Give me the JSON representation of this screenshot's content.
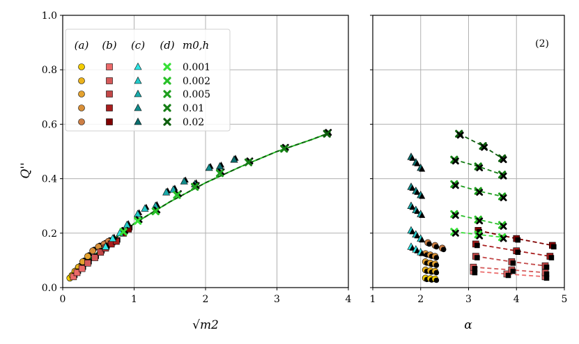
{
  "colors": {
    "a": [
      "#f3cc00",
      "#ebb21c",
      "#e4a22f",
      "#d88f38",
      "#cd7f45"
    ],
    "b": [
      "#eb6a6a",
      "#d45959",
      "#c24747",
      "#a81e1e",
      "#800000"
    ],
    "c": [
      "#2ee6e6",
      "#23c9c9",
      "#1aabab",
      "#128c8c",
      "#0b6e6e"
    ],
    "d": [
      "#36e036",
      "#28bf28",
      "#1e9e1e",
      "#157d15",
      "#0d5e0d"
    ],
    "black": "#000000",
    "grid": "#b0b0b0"
  },
  "legend": {
    "headers": [
      "(a)",
      "(b)",
      "(c)",
      "(d)",
      "m0,h"
    ],
    "m0_values": [
      "0.001",
      "0.002",
      "0.005",
      "0.01",
      "0.02"
    ]
  },
  "chart_data": [
    {
      "type": "scatter",
      "panel": "left",
      "xlabel": "√m2",
      "ylabel": "Q''",
      "xlim": [
        0,
        4
      ],
      "ylim": [
        0,
        1.0
      ],
      "xticks": [
        "0",
        "1",
        "2",
        "3",
        "4"
      ],
      "yticks": [
        "0.0",
        "0.2",
        "0.4",
        "0.6",
        "0.8",
        "1.0"
      ],
      "grid": true,
      "series": [
        {
          "name": "(a)",
          "marker": "circle",
          "points": [
            [
              0.1,
              0.035
            ],
            [
              0.13,
              0.045
            ],
            [
              0.17,
              0.06
            ],
            [
              0.22,
              0.075
            ],
            [
              0.28,
              0.095
            ],
            [
              0.35,
              0.115
            ],
            [
              0.42,
              0.135
            ],
            [
              0.5,
              0.15
            ],
            [
              0.58,
              0.16
            ],
            [
              0.64,
              0.17
            ]
          ]
        },
        {
          "name": "(b)",
          "marker": "square",
          "points": [
            [
              0.15,
              0.04
            ],
            [
              0.2,
              0.055
            ],
            [
              0.27,
              0.07
            ],
            [
              0.35,
              0.09
            ],
            [
              0.45,
              0.11
            ],
            [
              0.53,
              0.13
            ],
            [
              0.6,
              0.145
            ],
            [
              0.68,
              0.16
            ],
            [
              0.75,
              0.17
            ],
            [
              0.85,
              0.2
            ],
            [
              0.92,
              0.215
            ]
          ]
        },
        {
          "name": "(c)",
          "marker": "triangle",
          "points": [
            [
              0.6,
              0.15
            ],
            [
              0.7,
              0.18
            ],
            [
              0.8,
              0.2
            ],
            [
              0.9,
              0.23
            ],
            [
              1.05,
              0.27
            ],
            [
              1.15,
              0.29
            ],
            [
              1.3,
              0.3
            ],
            [
              1.45,
              0.35
            ],
            [
              1.55,
              0.36
            ],
            [
              1.7,
              0.39
            ],
            [
              1.85,
              0.38
            ],
            [
              2.05,
              0.44
            ],
            [
              2.2,
              0.445
            ],
            [
              2.4,
              0.47
            ]
          ]
        },
        {
          "name": "(d)",
          "marker": "x",
          "points": [
            [
              0.85,
              0.205
            ],
            [
              1.05,
              0.245
            ],
            [
              1.3,
              0.28
            ],
            [
              1.6,
              0.34
            ],
            [
              1.85,
              0.37
            ],
            [
              2.2,
              0.42
            ],
            [
              2.6,
              0.46
            ],
            [
              3.1,
              0.51
            ],
            [
              3.7,
              0.565
            ]
          ]
        }
      ],
      "fit_line": [
        [
          0.1,
          0.03
        ],
        [
          0.3,
          0.085
        ],
        [
          0.6,
          0.155
        ],
        [
          1.0,
          0.235
        ],
        [
          1.5,
          0.315
        ],
        [
          2.0,
          0.385
        ],
        [
          2.5,
          0.445
        ],
        [
          3.0,
          0.5
        ],
        [
          3.5,
          0.545
        ],
        [
          3.75,
          0.57
        ]
      ]
    },
    {
      "type": "scatter",
      "panel": "right",
      "xlabel": "α",
      "annotation": "(2)",
      "xlim": [
        1,
        5
      ],
      "ylim": [
        0,
        1.0
      ],
      "xticks": [
        "1",
        "2",
        "3",
        "4",
        "5"
      ],
      "grid": true,
      "groups": [
        {
          "family": "a",
          "marker": "circle",
          "level": 0,
          "points": [
            [
              2.1,
              0.035
            ],
            [
              2.2,
              0.033
            ],
            [
              2.3,
              0.032
            ]
          ]
        },
        {
          "family": "a",
          "marker": "circle",
          "level": 1,
          "points": [
            [
              2.1,
              0.065
            ],
            [
              2.2,
              0.062
            ],
            [
              2.3,
              0.06
            ]
          ]
        },
        {
          "family": "a",
          "marker": "circle",
          "level": 2,
          "points": [
            [
              2.1,
              0.095
            ],
            [
              2.2,
              0.09
            ],
            [
              2.3,
              0.087
            ]
          ]
        },
        {
          "family": "a",
          "marker": "circle",
          "level": 3,
          "points": [
            [
              2.1,
              0.125
            ],
            [
              2.2,
              0.12
            ],
            [
              2.3,
              0.115
            ]
          ]
        },
        {
          "family": "a",
          "marker": "circle",
          "level": 4,
          "points": [
            [
              2.15,
              0.165
            ],
            [
              2.3,
              0.155
            ],
            [
              2.45,
              0.145
            ]
          ]
        },
        {
          "family": "b",
          "marker": "square",
          "level": 0,
          "points": [
            [
              3.1,
              0.06
            ],
            [
              3.8,
              0.05
            ],
            [
              4.6,
              0.04
            ]
          ]
        },
        {
          "family": "b",
          "marker": "square",
          "level": 1,
          "points": [
            [
              3.1,
              0.075
            ],
            [
              3.9,
              0.065
            ],
            [
              4.6,
              0.055
            ]
          ]
        },
        {
          "family": "b",
          "marker": "square",
          "level": 2,
          "points": [
            [
              3.15,
              0.115
            ],
            [
              3.9,
              0.095
            ],
            [
              4.6,
              0.08
            ]
          ]
        },
        {
          "family": "b",
          "marker": "square",
          "level": 3,
          "points": [
            [
              3.15,
              0.16
            ],
            [
              4.0,
              0.135
            ],
            [
              4.7,
              0.115
            ]
          ]
        },
        {
          "family": "b",
          "marker": "square",
          "level": 4,
          "points": [
            [
              3.2,
              0.21
            ],
            [
              4.0,
              0.18
            ],
            [
              4.75,
              0.155
            ]
          ]
        },
        {
          "family": "c",
          "marker": "triangle",
          "level": 0,
          "points": [
            [
              1.8,
              0.15
            ],
            [
              1.9,
              0.14
            ],
            [
              2.0,
              0.13
            ]
          ]
        },
        {
          "family": "c",
          "marker": "triangle",
          "level": 1,
          "points": [
            [
              1.8,
              0.21
            ],
            [
              1.9,
              0.195
            ],
            [
              2.0,
              0.18
            ]
          ]
        },
        {
          "family": "c",
          "marker": "triangle",
          "level": 2,
          "points": [
            [
              1.8,
              0.3
            ],
            [
              1.9,
              0.285
            ],
            [
              2.0,
              0.27
            ]
          ]
        },
        {
          "family": "c",
          "marker": "triangle",
          "level": 3,
          "points": [
            [
              1.8,
              0.37
            ],
            [
              1.9,
              0.355
            ],
            [
              2.0,
              0.34
            ]
          ]
        },
        {
          "family": "c",
          "marker": "triangle",
          "level": 4,
          "points": [
            [
              1.8,
              0.48
            ],
            [
              1.9,
              0.46
            ],
            [
              2.0,
              0.44
            ]
          ]
        },
        {
          "family": "d",
          "marker": "x",
          "level": 0,
          "points": [
            [
              2.7,
              0.205
            ],
            [
              3.2,
              0.195
            ],
            [
              3.7,
              0.185
            ]
          ]
        },
        {
          "family": "d",
          "marker": "x",
          "level": 1,
          "points": [
            [
              2.7,
              0.27
            ],
            [
              3.2,
              0.25
            ],
            [
              3.7,
              0.23
            ]
          ]
        },
        {
          "family": "d",
          "marker": "x",
          "level": 2,
          "points": [
            [
              2.7,
              0.38
            ],
            [
              3.2,
              0.355
            ],
            [
              3.7,
              0.335
            ]
          ]
        },
        {
          "family": "d",
          "marker": "x",
          "level": 3,
          "points": [
            [
              2.7,
              0.47
            ],
            [
              3.2,
              0.445
            ],
            [
              3.7,
              0.415
            ]
          ]
        },
        {
          "family": "d",
          "marker": "x",
          "level": 4,
          "points": [
            [
              2.8,
              0.565
            ],
            [
              3.3,
              0.52
            ],
            [
              3.7,
              0.475
            ]
          ]
        }
      ]
    }
  ]
}
